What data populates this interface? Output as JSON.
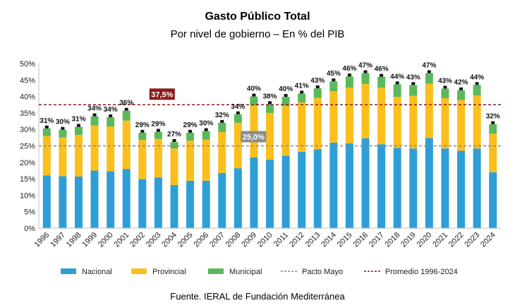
{
  "chart_data": {
    "type": "bar",
    "stacked": true,
    "title": "Gasto Público Total",
    "subtitle": "Por nivel de gobierno – En % del PIB",
    "source": "Fuente. IERAL de Fundación Mediterránea",
    "ylim": [
      0,
      50
    ],
    "yticks": [
      "0%",
      "5%",
      "10%",
      "15%",
      "20%",
      "25%",
      "30%",
      "35%",
      "40%",
      "45%",
      "50%"
    ],
    "grid": false,
    "legend_position": "bottom",
    "categories": [
      "1996",
      "1997",
      "1998",
      "1999",
      "2000",
      "2001",
      "2002",
      "2003",
      "2004",
      "2005",
      "2006",
      "2007",
      "2008",
      "2009",
      "2010",
      "2011",
      "2012",
      "2013",
      "2014",
      "2015",
      "2016",
      "2017",
      "2018",
      "2019",
      "2020",
      "2021",
      "2022",
      "2023",
      "2024"
    ],
    "series": [
      {
        "name": "Nacional",
        "color": "#2e9fd6",
        "values": [
          16.0,
          15.8,
          15.7,
          17.5,
          17.3,
          18.0,
          14.9,
          15.4,
          13.1,
          14.4,
          14.4,
          16.8,
          18.2,
          21.5,
          20.8,
          22.0,
          23.2,
          24.0,
          26.0,
          25.8,
          27.3,
          25.5,
          24.4,
          24.2,
          27.4,
          24.2,
          23.5,
          24.2,
          17.0
        ]
      },
      {
        "name": "Provincial",
        "color": "#fbbf1c",
        "values": [
          12.0,
          11.8,
          12.6,
          13.7,
          13.6,
          14.7,
          11.9,
          11.7,
          11.1,
          12.2,
          12.5,
          12.4,
          13.8,
          15.7,
          14.2,
          15.1,
          15.0,
          15.6,
          15.6,
          16.9,
          16.5,
          17.2,
          15.5,
          16.0,
          16.5,
          15.3,
          15.4,
          16.1,
          11.7
        ]
      },
      {
        "name": "Municipal",
        "color": "#5cb85c",
        "values": [
          2.3,
          2.3,
          2.5,
          2.8,
          2.8,
          3.0,
          2.2,
          2.2,
          2.0,
          2.4,
          2.6,
          2.8,
          2.6,
          2.8,
          2.7,
          2.8,
          2.7,
          2.9,
          3.0,
          3.4,
          3.3,
          3.3,
          3.8,
          3.3,
          3.2,
          2.9,
          3.0,
          3.2,
          2.9
        ]
      }
    ],
    "total_labels": [
      "31%",
      "30%",
      "31%",
      "34%",
      "34%",
      "36%",
      "29%",
      "29%",
      "27%",
      "29%",
      "30%",
      "32%",
      "34%",
      "40%",
      "38%",
      "40%",
      "41%",
      "43%",
      "45%",
      "46%",
      "47%",
      "46%",
      "44%",
      "43%",
      "47%",
      "43%",
      "42%",
      "44%",
      "32%"
    ],
    "reference_lines": [
      {
        "name": "Pacto Mayo",
        "value": 25.0,
        "label": "25,0%",
        "color": "#888888",
        "label_bg": "#8c8c8c"
      },
      {
        "name": "Promedio 1996-2024",
        "value": 37.5,
        "label": "37,5%",
        "color": "#8b1a1a",
        "label_bg": "#8b1a1a"
      }
    ],
    "legend": [
      {
        "name": "Nacional",
        "kind": "box",
        "color": "#2e9fd6"
      },
      {
        "name": "Provincial",
        "kind": "box",
        "color": "#fbbf1c"
      },
      {
        "name": "Municipal",
        "kind": "box",
        "color": "#5cb85c"
      },
      {
        "name": "Pacto Mayo",
        "kind": "dash",
        "color": "#888888"
      },
      {
        "name": "Promedio 1996-2024",
        "kind": "dash",
        "color": "#8b1a1a"
      }
    ]
  }
}
